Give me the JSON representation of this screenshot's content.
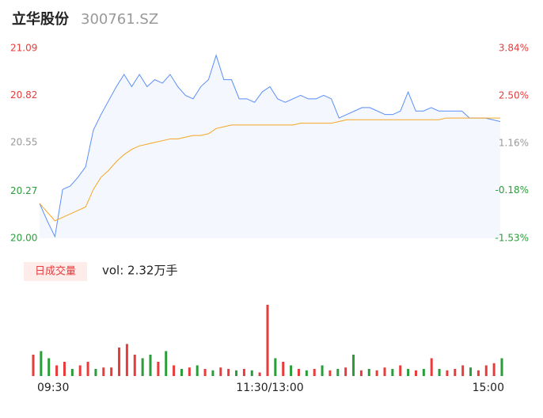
{
  "title": "立华股份",
  "code": "300761.SZ",
  "chart_data": [
    {
      "type": "line",
      "ylim": [
        20.0,
        21.09
      ],
      "yticks": [
        {
          "value": 20.0,
          "label": "20.00"
        },
        20.27,
        20.55,
        20.82,
        21.09
      ],
      "ytick_colors": [
        "#2a9d3a",
        "#2a9d3a",
        "#999999",
        "#e83b3b",
        "#e83b3b"
      ],
      "y2lim": [
        -1.53,
        3.84
      ],
      "y2ticks": [
        {
          "value": -1.53,
          "label": "-1.53%"
        },
        {
          "value": -0.18,
          "label": "-0.18%"
        },
        {
          "value": 1.16,
          "label": "1.16%"
        },
        {
          "value": 2.5,
          "label": "2.50%"
        },
        {
          "value": 3.84,
          "label": "3.84%"
        }
      ],
      "y2tick_colors": [
        "#2a9d3a",
        "#2a9d3a",
        "#999999",
        "#e83b3b",
        "#e83b3b"
      ],
      "xlim": [
        0,
        240
      ],
      "xticks": [
        {
          "value": 0,
          "label": "09:30"
        },
        {
          "value": 120,
          "label": "11:30/13:00"
        },
        {
          "value": 240,
          "label": "15:00"
        }
      ],
      "x": [
        0,
        4,
        8,
        12,
        16,
        20,
        24,
        28,
        32,
        36,
        40,
        44,
        48,
        52,
        56,
        60,
        64,
        68,
        72,
        76,
        80,
        84,
        88,
        92,
        96,
        100,
        104,
        108,
        112,
        116,
        120,
        124,
        128,
        132,
        136,
        140,
        144,
        148,
        152,
        156,
        160,
        164,
        168,
        172,
        176,
        180,
        184,
        188,
        192,
        196,
        200,
        204,
        208,
        212,
        216,
        220,
        224,
        228,
        232,
        236,
        240
      ],
      "series": [
        {
          "color": "#5b8ff9",
          "fill": "#f4f7fd",
          "values": [
            20.2,
            20.1,
            20.01,
            20.28,
            20.3,
            20.35,
            20.41,
            20.62,
            20.71,
            20.79,
            20.87,
            20.94,
            20.87,
            20.94,
            20.87,
            20.91,
            20.89,
            20.94,
            20.87,
            20.82,
            20.8,
            20.87,
            20.91,
            21.05,
            20.91,
            20.91,
            20.8,
            20.8,
            20.78,
            20.84,
            20.87,
            20.8,
            20.78,
            20.8,
            20.82,
            20.8,
            20.8,
            20.82,
            20.8,
            20.69,
            20.71,
            20.73,
            20.75,
            20.75,
            20.73,
            20.71,
            20.71,
            20.73,
            20.84,
            20.73,
            20.73,
            20.75,
            20.73,
            20.73,
            20.73,
            20.73,
            20.69,
            20.69,
            20.69,
            20.68,
            20.67
          ]
        },
        {
          "color": "#f5a623",
          "values": [
            20.2,
            20.15,
            20.1,
            20.12,
            20.14,
            20.16,
            20.18,
            20.28,
            20.35,
            20.39,
            20.44,
            20.48,
            20.51,
            20.53,
            20.54,
            20.55,
            20.56,
            20.57,
            20.57,
            20.58,
            20.59,
            20.59,
            20.6,
            20.63,
            20.64,
            20.65,
            20.65,
            20.65,
            20.65,
            20.65,
            20.65,
            20.65,
            20.65,
            20.65,
            20.66,
            20.66,
            20.66,
            20.66,
            20.66,
            20.67,
            20.68,
            20.68,
            20.68,
            20.68,
            20.68,
            20.68,
            20.68,
            20.68,
            20.68,
            20.68,
            20.68,
            20.68,
            20.68,
            20.69,
            20.69,
            20.69,
            20.69,
            20.69,
            20.69,
            20.69,
            20.69
          ]
        }
      ]
    },
    {
      "type": "bar",
      "label": "日成交量",
      "summary": "vol: 2.32万手",
      "ylim": [
        0,
        100
      ],
      "x": [
        0,
        4,
        8,
        12,
        16,
        20,
        24,
        28,
        32,
        36,
        40,
        44,
        48,
        52,
        56,
        60,
        64,
        68,
        72,
        76,
        80,
        84,
        88,
        92,
        96,
        100,
        104,
        108,
        112,
        116,
        120,
        124,
        128,
        132,
        136,
        140,
        144,
        148,
        152,
        156,
        160,
        164,
        168,
        172,
        176,
        180,
        184,
        188,
        192,
        196,
        200,
        204,
        208,
        212,
        216,
        220,
        224,
        228,
        232,
        236,
        240
      ],
      "values": [
        30,
        35,
        25,
        15,
        20,
        10,
        15,
        20,
        10,
        12,
        12,
        40,
        45,
        30,
        25,
        30,
        20,
        35,
        15,
        10,
        12,
        15,
        10,
        8,
        12,
        10,
        8,
        10,
        8,
        5,
        100,
        25,
        20,
        15,
        10,
        8,
        10,
        15,
        8,
        10,
        12,
        30,
        8,
        10,
        8,
        12,
        10,
        15,
        10,
        8,
        10,
        25,
        10,
        8,
        10,
        15,
        12,
        8,
        15,
        18,
        25
      ],
      "colors": [
        "#e83b3b",
        "#2a9d3a",
        "#2a9d3a",
        "#e83b3b",
        "#e83b3b",
        "#2a9d3a",
        "#e83b3b",
        "#e83b3b",
        "#2a9d3a",
        "#e83b3b",
        "#e83b3b",
        "#e83b3b",
        "#e83b3b",
        "#e83b3b",
        "#2a9d3a",
        "#2a9d3a",
        "#e83b3b",
        "#2a9d3a",
        "#e83b3b",
        "#2a9d3a",
        "#e83b3b",
        "#2a9d3a",
        "#e83b3b",
        "#2a9d3a",
        "#e83b3b",
        "#e83b3b",
        "#2a9d3a",
        "#e83b3b",
        "#2a9d3a",
        "#e83b3b",
        "#e83b3b",
        "#2a9d3a",
        "#e83b3b",
        "#2a9d3a",
        "#e83b3b",
        "#2a9d3a",
        "#e83b3b",
        "#2a9d3a",
        "#e83b3b",
        "#2a9d3a",
        "#e83b3b",
        "#2a9d3a",
        "#e83b3b",
        "#2a9d3a",
        "#e83b3b",
        "#e83b3b",
        "#2a9d3a",
        "#e83b3b",
        "#2a9d3a",
        "#e83b3b",
        "#2a9d3a",
        "#e83b3b",
        "#2a9d3a",
        "#e83b3b",
        "#e83b3b",
        "#e83b3b",
        "#2a9d3a",
        "#e83b3b",
        "#e83b3b",
        "#e83b3b",
        "#2a9d3a"
      ]
    }
  ]
}
